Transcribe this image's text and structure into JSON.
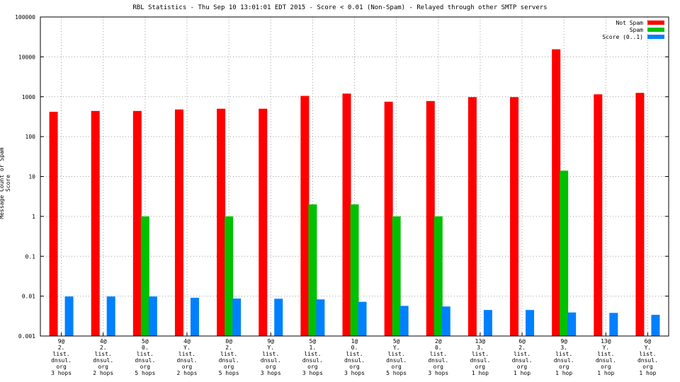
{
  "chart_data": {
    "type": "bar",
    "title": "RBL Statistics - Thu Sep 10 13:01:01 EDT 2015 - Score < 0.01 (Non-Spam) - Relayed through other SMTP servers",
    "xlabel": "",
    "ylabel": "Message Count or Spam Score",
    "yscale": "log",
    "ylim": [
      0.001,
      100000
    ],
    "grid": true,
    "legend_position": "top-right",
    "y_ticks": [
      "0.001",
      "0.01",
      "0.1",
      "1",
      "10",
      "100",
      "1000",
      "10000",
      "100000"
    ],
    "categories": [
      [
        "9@",
        "2.",
        "list.",
        "dnsul.",
        "org",
        "3 hops"
      ],
      [
        "4@",
        "2.",
        "list.",
        "dnsul.",
        "org",
        "2 hops"
      ],
      [
        "5@",
        "0.",
        "list.",
        "dnsul.",
        "org",
        "5 hops"
      ],
      [
        "4@",
        "Y.",
        "list.",
        "dnsul.",
        "org",
        "2 hops"
      ],
      [
        "0@",
        "2.",
        "list.",
        "dnsul.",
        "org",
        "5 hops"
      ],
      [
        "9@",
        "Y.",
        "list.",
        "dnsul.",
        "org",
        "3 hops"
      ],
      [
        "5@",
        "1.",
        "list.",
        "dnsul.",
        "org",
        "3 hops"
      ],
      [
        "1@",
        "0.",
        "list.",
        "dnsul.",
        "org",
        "3 hops"
      ],
      [
        "5@",
        "Y.",
        "list.",
        "dnsul.",
        "org",
        "5 hops"
      ],
      [
        "2@",
        "0.",
        "list.",
        "dnsul.",
        "org",
        "3 hops"
      ],
      [
        "13@",
        "3.",
        "list.",
        "dnsul.",
        "org",
        "1 hop"
      ],
      [
        "6@",
        "2.",
        "list.",
        "dnsul.",
        "org",
        "1 hop"
      ],
      [
        "9@",
        "3.",
        "list.",
        "dnsul.",
        "org",
        "1 hop"
      ],
      [
        "13@",
        "Y.",
        "list.",
        "dnsul.",
        "org",
        "1 hop"
      ],
      [
        "6@",
        "Y.",
        "list.",
        "dnsul.",
        "org",
        "1 hop"
      ]
    ],
    "series": [
      {
        "name": "Not Spam",
        "color": "#ff0000",
        "values": [
          420,
          440,
          440,
          480,
          500,
          500,
          1050,
          1200,
          750,
          780,
          980,
          980,
          15500,
          1150,
          1250
        ]
      },
      {
        "name": "Spam",
        "color": "#00c000",
        "values": [
          null,
          null,
          1,
          null,
          1,
          null,
          2,
          2,
          1,
          1,
          null,
          null,
          14,
          null,
          null
        ]
      },
      {
        "name": "Score (0..1)",
        "color": "#0080ff",
        "values": [
          0.0098,
          0.0098,
          0.0098,
          0.0091,
          0.0087,
          0.0086,
          0.0083,
          0.0072,
          0.0057,
          0.0055,
          0.0045,
          0.0045,
          0.0039,
          0.0038,
          0.0034
        ]
      }
    ]
  }
}
